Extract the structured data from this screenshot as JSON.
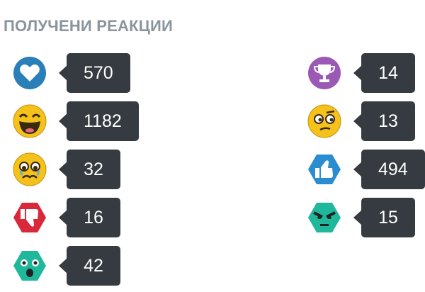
{
  "title": "ПОЛУЧЕНИ РЕАКЦИИ",
  "reactions": [
    {
      "icon": "heart-icon",
      "count": "570",
      "color": "#2a7fb8"
    },
    {
      "icon": "laughing-face-icon",
      "count": "1182",
      "color": "#f5c21b"
    },
    {
      "icon": "crying-face-icon",
      "count": "32",
      "color": "#f5c21b"
    },
    {
      "icon": "thumbs-down-icon",
      "count": "16",
      "color": "#d8283a"
    },
    {
      "icon": "shocked-face-icon",
      "count": "42",
      "color": "#1fb89a"
    },
    {
      "icon": "trophy-icon",
      "count": "14",
      "color": "#9b59b6"
    },
    {
      "icon": "confused-face-icon",
      "count": "13",
      "color": "#f5c21b"
    },
    {
      "icon": "thumbs-up-icon",
      "count": "494",
      "color": "#2a8dd0"
    },
    {
      "icon": "angry-face-icon",
      "count": "15",
      "color": "#1fb89a"
    }
  ]
}
